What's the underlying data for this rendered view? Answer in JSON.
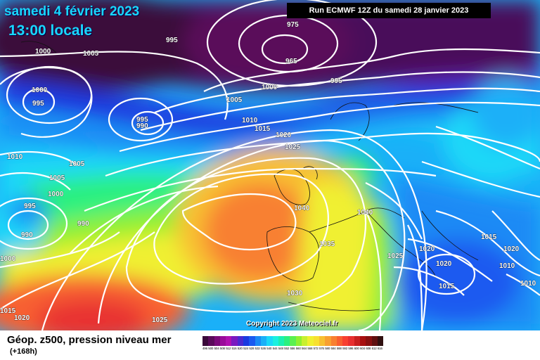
{
  "title": {
    "date": "samedi 4 février 2023",
    "time": "13:00 locale"
  },
  "run_info": "Run ECMWF 12Z du samedi 28 janvier 2023",
  "copyright": "Copyright 2023 Meteociel.fr",
  "footer": {
    "caption": "Géop. z500, pression niveau mer",
    "lead_time": "(+168h)"
  },
  "legend_scale": {
    "values": [
      "496",
      "500",
      "504",
      "508",
      "512",
      "516",
      "520",
      "524",
      "528",
      "532",
      "536",
      "540",
      "544",
      "548",
      "552",
      "556",
      "560",
      "564",
      "568",
      "572",
      "576",
      "580",
      "584",
      "588",
      "592",
      "596",
      "600",
      "604",
      "608",
      "612",
      "616"
    ],
    "colors": [
      "#3a0a3a",
      "#5a0a5a",
      "#7a0a7a",
      "#9a0c9a",
      "#b012b0",
      "#7a1ac0",
      "#4a2ad0",
      "#1a3ae0",
      "#1a5af0",
      "#1a8af5",
      "#1ab0f8",
      "#1ad8f8",
      "#1af0e0",
      "#1af0b0",
      "#2af080",
      "#5af050",
      "#90f030",
      "#c8f030",
      "#f0f030",
      "#f8e030",
      "#f8c030",
      "#f8a030",
      "#f88030",
      "#f86030",
      "#f84030",
      "#e83030",
      "#c82020",
      "#a81010",
      "#881010",
      "#601010",
      "#301010"
    ]
  },
  "pressure_labels": [
    {
      "text": "975"
    },
    {
      "text": "965"
    },
    {
      "text": "995"
    },
    {
      "text": "1005"
    },
    {
      "text": "1000"
    },
    {
      "text": "1000"
    },
    {
      "text": "995"
    },
    {
      "text": "1000"
    },
    {
      "text": "995"
    },
    {
      "text": "1005"
    },
    {
      "text": "995"
    },
    {
      "text": "990"
    },
    {
      "text": "1010"
    },
    {
      "text": "1015"
    },
    {
      "text": "1020"
    },
    {
      "text": "1025"
    },
    {
      "text": "1010"
    },
    {
      "text": "1005"
    },
    {
      "text": "1005"
    },
    {
      "text": "1000"
    },
    {
      "text": "995"
    },
    {
      "text": "990"
    },
    {
      "text": "990"
    },
    {
      "text": "1000"
    },
    {
      "text": "1040"
    },
    {
      "text": "1040"
    },
    {
      "text": "1035"
    },
    {
      "text": "1030"
    },
    {
      "text": "1025"
    },
    {
      "text": "1020"
    },
    {
      "text": "1020"
    },
    {
      "text": "1015"
    },
    {
      "text": "1025"
    },
    {
      "text": "1020"
    },
    {
      "text": "1015"
    },
    {
      "text": "1010"
    },
    {
      "text": "1010"
    },
    {
      "text": "1020"
    },
    {
      "text": "1015"
    }
  ]
}
